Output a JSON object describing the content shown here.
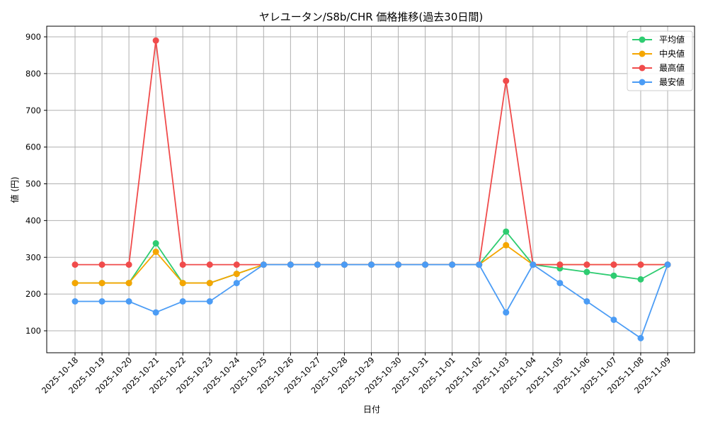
{
  "chart_data": {
    "type": "line",
    "title": "ヤレユータン/S8b/CHR 価格推移(過去30日間)",
    "xlabel": "日付",
    "ylabel": "値 (円)",
    "ylim": [
      40,
      930
    ],
    "yticks": [
      100,
      200,
      300,
      400,
      500,
      600,
      700,
      800,
      900
    ],
    "grid": true,
    "legend_position": "upper right",
    "categories": [
      "2025-10-18",
      "2025-10-19",
      "2025-10-20",
      "2025-10-21",
      "2025-10-22",
      "2025-10-23",
      "2025-10-24",
      "2025-10-25",
      "2025-10-26",
      "2025-10-27",
      "2025-10-28",
      "2025-10-29",
      "2025-10-30",
      "2025-10-31",
      "2025-11-01",
      "2025-11-02",
      "2025-11-03",
      "2025-11-04",
      "2025-11-05",
      "2025-11-06",
      "2025-11-07",
      "2025-11-08",
      "2025-11-09"
    ],
    "series": [
      {
        "name": "平均値",
        "color": "#2ecc71",
        "values": [
          230,
          230,
          230,
          338,
          230,
          230,
          255,
          280,
          280,
          280,
          280,
          280,
          280,
          280,
          280,
          280,
          370,
          280,
          270,
          260,
          250,
          240,
          280
        ]
      },
      {
        "name": "中央値",
        "color": "#f5a600",
        "values": [
          230,
          230,
          230,
          315,
          230,
          230,
          255,
          280,
          280,
          280,
          280,
          280,
          280,
          280,
          280,
          280,
          333,
          280,
          280,
          280,
          280,
          280,
          280
        ]
      },
      {
        "name": "最高値",
        "color": "#f04b4b",
        "values": [
          280,
          280,
          280,
          890,
          280,
          280,
          280,
          280,
          280,
          280,
          280,
          280,
          280,
          280,
          280,
          280,
          780,
          280,
          280,
          280,
          280,
          280,
          280
        ]
      },
      {
        "name": "最安値",
        "color": "#4b9cf5",
        "values": [
          180,
          180,
          180,
          150,
          180,
          180,
          230,
          280,
          280,
          280,
          280,
          280,
          280,
          280,
          280,
          280,
          150,
          280,
          230,
          180,
          130,
          80,
          280
        ]
      }
    ]
  }
}
